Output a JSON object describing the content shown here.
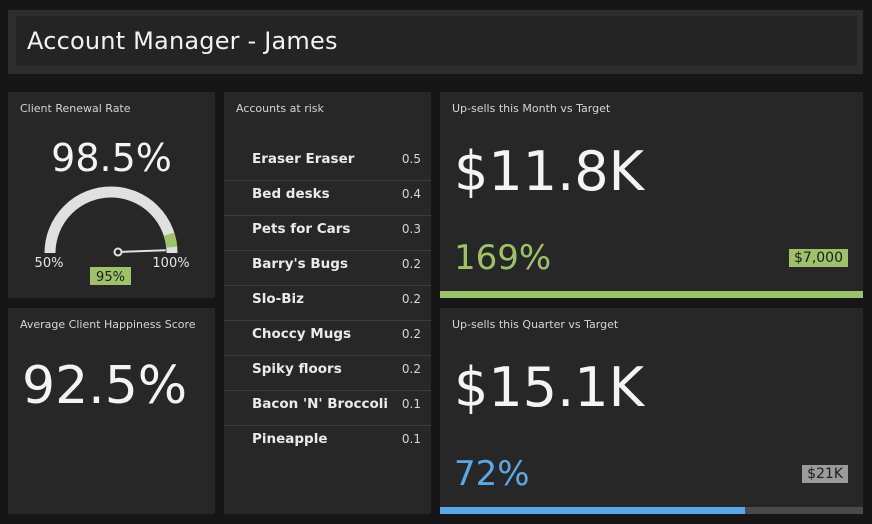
{
  "header": {
    "title": "Account Manager - James"
  },
  "renewal": {
    "title": "Client Renewal Rate",
    "value": "98.5%",
    "gauge": {
      "min_label": "50%",
      "max_label": "100%",
      "marker_label": "95%",
      "min": 50,
      "max": 100,
      "value": 98.5,
      "marker": 95
    }
  },
  "happiness": {
    "title": "Average Client Happiness Score",
    "value": "92.5%"
  },
  "risk": {
    "title": "Accounts at risk",
    "items": [
      {
        "name": "Eraser Eraser",
        "score": "0.5"
      },
      {
        "name": "Bed desks",
        "score": "0.4"
      },
      {
        "name": "Pets for Cars",
        "score": "0.3"
      },
      {
        "name": "Barry's Bugs",
        "score": "0.2"
      },
      {
        "name": "Slo-Biz",
        "score": "0.2"
      },
      {
        "name": "Choccy Mugs",
        "score": "0.2"
      },
      {
        "name": "Spiky floors",
        "score": "0.2"
      },
      {
        "name": "Bacon 'N' Broccoli",
        "score": "0.1"
      },
      {
        "name": "Pineapple",
        "score": "0.1"
      }
    ]
  },
  "month": {
    "title": "Up-sells this Month vs Target",
    "value": "$11.8K",
    "percent": "169%",
    "target": "$7,000",
    "progress": 1.0
  },
  "quarter": {
    "title": "Up-sells this Quarter vs Target",
    "value": "$15.1K",
    "percent": "72%",
    "target": "$21K",
    "progress": 0.72
  },
  "colors": {
    "green": "#9dc36a",
    "blue": "#5aa9e6",
    "gauge_track": "#e0e0e0"
  }
}
